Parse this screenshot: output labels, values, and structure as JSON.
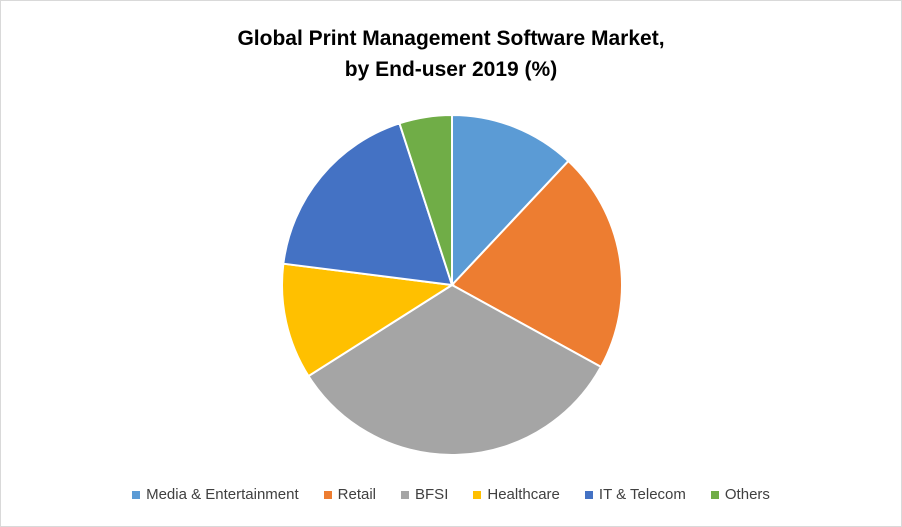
{
  "chart_data": {
    "type": "pie",
    "title_lines": [
      "Global Print Management Software Market,",
      "by End-user 2019 (%)"
    ],
    "legend_position": "bottom",
    "slices": [
      {
        "label": "Media & Entertainment",
        "value": 12,
        "color": "#5B9BD5"
      },
      {
        "label": "Retail",
        "value": 21,
        "color": "#ED7D31"
      },
      {
        "label": "BFSI",
        "value": 33,
        "color": "#A5A5A5"
      },
      {
        "label": "Healthcare",
        "value": 11,
        "color": "#FFC000"
      },
      {
        "label": "IT & Telecom",
        "value": 18,
        "color": "#4472C4"
      },
      {
        "label": "Others",
        "value": 5,
        "color": "#70AD47"
      }
    ]
  }
}
